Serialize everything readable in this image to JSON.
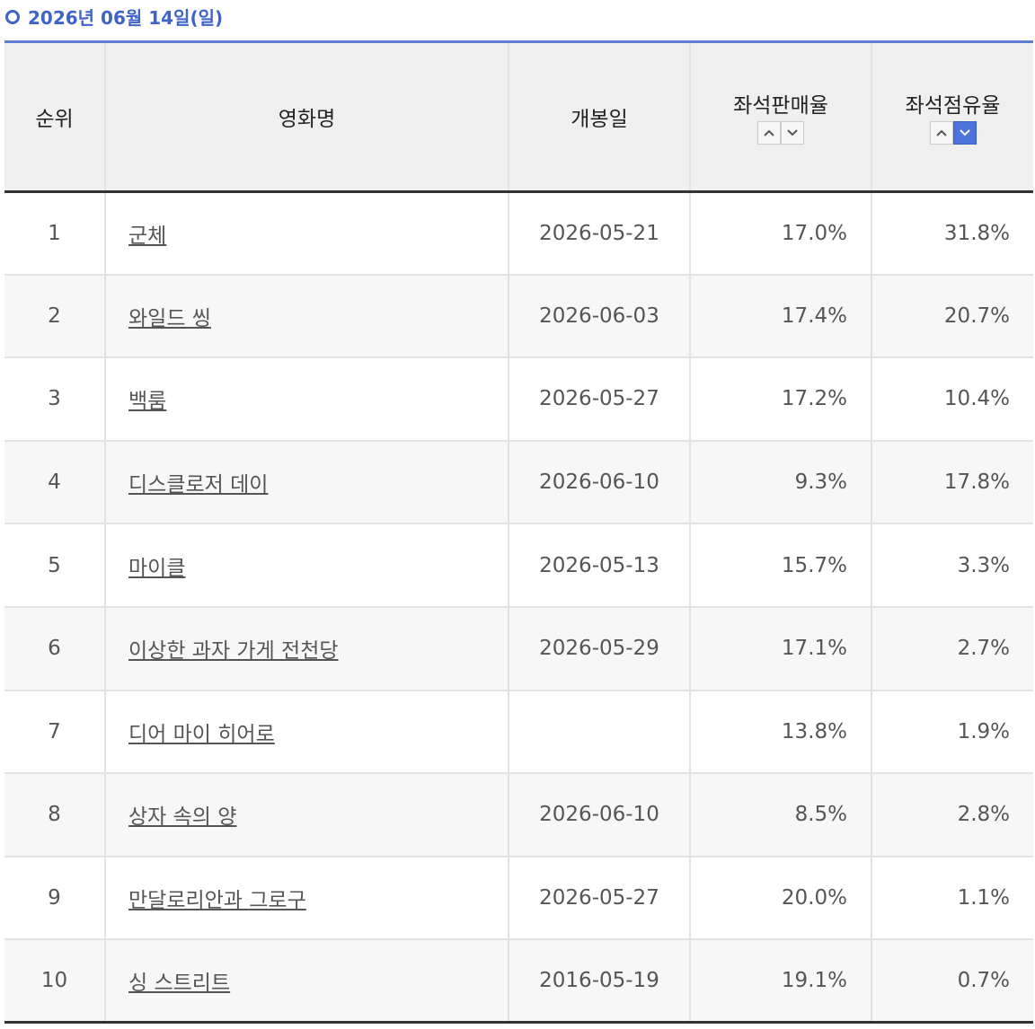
{
  "header": {
    "title": "2026년 06월 14일(일)"
  },
  "table": {
    "headers": [
      "순위",
      "영화명",
      "개봉일",
      "좌석판매율",
      "좌석점유율"
    ],
    "rows": [
      [
        "1",
        "군체",
        "2026-05-21",
        "17.0%",
        "31.8%"
      ],
      [
        "2",
        "와일드 씽",
        "2026-06-03",
        "17.4%",
        "20.7%"
      ],
      [
        "3",
        "백룸",
        "2026-05-27",
        "17.2%",
        "10.4%"
      ],
      [
        "4",
        "디스클로저 데이",
        "2026-06-10",
        "9.3%",
        "17.8%"
      ],
      [
        "5",
        "마이클",
        "2026-05-13",
        "15.7%",
        "3.3%"
      ],
      [
        "6",
        "이상한 과자 가게 전천당",
        "2026-05-29",
        "17.1%",
        "2.7%"
      ],
      [
        "7",
        "디어 마이 히어로",
        null,
        "13.8%",
        "1.9%"
      ],
      [
        "8",
        "상자 속의 양",
        "2026-06-10",
        "8.5%",
        "2.8%"
      ],
      [
        "9",
        "만달로리안과 그로구",
        "2026-05-27",
        "20.0%",
        "1.1%"
      ],
      [
        "10",
        "싱 스트리트",
        "2016-05-19",
        "19.1%",
        "0.7%"
      ]
    ]
  }
}
